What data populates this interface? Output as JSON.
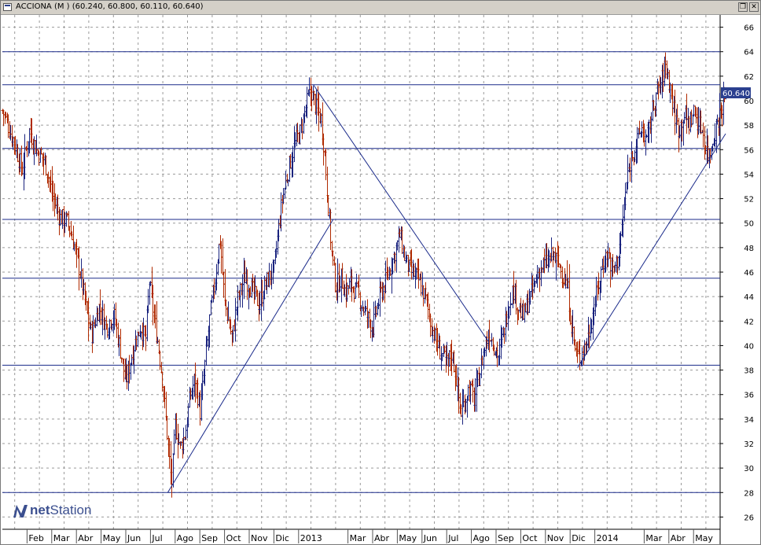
{
  "window": {
    "title": "ACCIONA (M ) (60.240, 60.800, 60.110, 60.640)"
  },
  "logo": {
    "brand_bold": "net",
    "brand_rest": "Station"
  },
  "colors": {
    "up": "#1a237e",
    "down": "#b02a00",
    "line": "#1a2a8a",
    "grid": "#9a9a9a",
    "price_tag": "#2a3f8f"
  },
  "chart_data": {
    "type": "ohlc-bar",
    "title": "ACCIONA (M )",
    "last": {
      "open": 60.24,
      "high": 60.8,
      "low": 60.11,
      "close": 60.64,
      "label": "60.640"
    },
    "ylim": [
      25,
      67
    ],
    "y_ticks": [
      26,
      28,
      30,
      32,
      34,
      36,
      38,
      40,
      42,
      44,
      46,
      48,
      50,
      52,
      54,
      56,
      58,
      60,
      62,
      64,
      66
    ],
    "x_labels": [
      "Feb",
      "Mar",
      "Abr",
      "May",
      "Jun",
      "Jul",
      "Ago",
      "Sep",
      "Oct",
      "Nov",
      "Dic",
      "2013",
      "Mar",
      "Abr",
      "May",
      "Jun",
      "Jul",
      "Ago",
      "Sep",
      "Oct",
      "Nov",
      "Dic",
      "2014",
      "Mar",
      "Abr",
      "May"
    ],
    "x_month_index": [
      1,
      2,
      3,
      4,
      5,
      6,
      7,
      8,
      9,
      10,
      11,
      12,
      14,
      15,
      16,
      17,
      18,
      19,
      20,
      21,
      22,
      23,
      24,
      26,
      27,
      28
    ],
    "x_range_months": [
      0,
      29.3
    ],
    "horizontal_levels": [
      28,
      38.4,
      45.5,
      50.3,
      56.1,
      61.3,
      64
    ],
    "trendlines": [
      {
        "from": [
          6.7,
          28
        ],
        "to": [
          13.4,
          50.3
        ]
      },
      {
        "from": [
          12.6,
          61.3
        ],
        "to": [
          19.7,
          40.3
        ]
      },
      {
        "from": [
          23.3,
          38.2
        ],
        "to": [
          29.3,
          57.3
        ]
      }
    ],
    "price_path": [
      [
        0,
        59.2
      ],
      [
        0.5,
        56.5
      ],
      [
        0.8,
        54.3
      ],
      [
        1.1,
        57.6
      ],
      [
        1.4,
        55.8
      ],
      [
        1.7,
        55.2
      ],
      [
        2.0,
        52.5
      ],
      [
        2.3,
        50.5
      ],
      [
        2.6,
        50.2
      ],
      [
        2.9,
        48.2
      ],
      [
        3.2,
        45.4
      ],
      [
        3.4,
        42.8
      ],
      [
        3.6,
        40.8
      ],
      [
        3.9,
        43.2
      ],
      [
        4.2,
        41.5
      ],
      [
        4.5,
        42.6
      ],
      [
        4.8,
        39.2
      ],
      [
        5.0,
        36.9
      ],
      [
        5.3,
        39.8
      ],
      [
        5.6,
        41.6
      ],
      [
        5.8,
        40.3
      ],
      [
        5.95,
        45.2
      ],
      [
        6.1,
        42.9
      ],
      [
        6.3,
        40.2
      ],
      [
        6.5,
        36.9
      ],
      [
        6.7,
        32.0
      ],
      [
        6.85,
        28.6
      ],
      [
        7.0,
        33.5
      ],
      [
        7.2,
        31.6
      ],
      [
        7.4,
        32.8
      ],
      [
        7.6,
        35.9
      ],
      [
        7.8,
        37.4
      ],
      [
        8.0,
        34.6
      ],
      [
        8.2,
        38.6
      ],
      [
        8.4,
        42.5
      ],
      [
        8.6,
        45.1
      ],
      [
        8.8,
        48.8
      ],
      [
        9.0,
        43.4
      ],
      [
        9.3,
        40.6
      ],
      [
        9.5,
        43.6
      ],
      [
        9.8,
        45.6
      ],
      [
        10.1,
        44.6
      ],
      [
        10.4,
        43.4
      ],
      [
        10.7,
        45.2
      ],
      [
        11.0,
        46.2
      ],
      [
        11.3,
        51.5
      ],
      [
        11.5,
        53.6
      ],
      [
        11.7,
        55.4
      ],
      [
        11.9,
        56.8
      ],
      [
        12.1,
        57.6
      ],
      [
        12.3,
        59.6
      ],
      [
        12.5,
        60.9
      ],
      [
        12.7,
        59.4
      ],
      [
        12.9,
        58.6
      ],
      [
        13.05,
        55.6
      ],
      [
        13.2,
        51.1
      ],
      [
        13.35,
        47.1
      ],
      [
        13.5,
        44.8
      ],
      [
        13.7,
        45.6
      ],
      [
        13.9,
        44.3
      ],
      [
        14.1,
        45.1
      ],
      [
        14.4,
        44.1
      ],
      [
        14.7,
        42.6
      ],
      [
        15.0,
        41.5
      ],
      [
        15.3,
        44.1
      ],
      [
        15.6,
        45.6
      ],
      [
        15.9,
        47.6
      ],
      [
        16.1,
        49.0
      ],
      [
        16.3,
        47.1
      ],
      [
        16.5,
        46.1
      ],
      [
        16.8,
        45.6
      ],
      [
        17.1,
        44.1
      ],
      [
        17.4,
        41.4
      ],
      [
        17.7,
        39.6
      ],
      [
        18.0,
        38.6
      ],
      [
        18.2,
        39.4
      ],
      [
        18.4,
        37.1
      ],
      [
        18.55,
        34.4
      ],
      [
        18.7,
        35.4
      ],
      [
        18.9,
        36.6
      ],
      [
        19.1,
        35.6
      ],
      [
        19.3,
        37.6
      ],
      [
        19.5,
        39.6
      ],
      [
        19.7,
        41.1
      ],
      [
        19.9,
        40.1
      ],
      [
        20.1,
        39.1
      ],
      [
        20.3,
        41.1
      ],
      [
        20.5,
        43.4
      ],
      [
        20.7,
        44.6
      ],
      [
        20.9,
        43.1
      ],
      [
        21.1,
        42.3
      ],
      [
        21.3,
        43.6
      ],
      [
        21.5,
        44.6
      ],
      [
        21.7,
        45.9
      ],
      [
        21.9,
        46.6
      ],
      [
        22.1,
        46.9
      ],
      [
        22.3,
        47.4
      ],
      [
        22.5,
        46.8
      ],
      [
        22.7,
        45.7
      ],
      [
        22.9,
        44.6
      ],
      [
        23.05,
        41.6
      ],
      [
        23.2,
        39.6
      ],
      [
        23.35,
        38.9
      ],
      [
        23.5,
        39.6
      ],
      [
        23.7,
        40.6
      ],
      [
        23.9,
        42.6
      ],
      [
        24.1,
        44.6
      ],
      [
        24.3,
        46.6
      ],
      [
        24.5,
        47.6
      ],
      [
        24.7,
        46.1
      ],
      [
        24.9,
        46.9
      ],
      [
        25.1,
        49.6
      ],
      [
        25.3,
        53.6
      ],
      [
        25.5,
        55.6
      ],
      [
        25.7,
        56.6
      ],
      [
        25.9,
        57.8
      ],
      [
        26.1,
        56.6
      ],
      [
        26.3,
        58.9
      ],
      [
        26.5,
        60.6
      ],
      [
        26.7,
        61.6
      ],
      [
        26.85,
        63.0
      ],
      [
        27.0,
        61.6
      ],
      [
        27.2,
        59.1
      ],
      [
        27.4,
        57.6
      ],
      [
        27.6,
        58.9
      ],
      [
        27.8,
        58.1
      ],
      [
        28.0,
        59.1
      ],
      [
        28.2,
        58.1
      ],
      [
        28.35,
        57.6
      ],
      [
        28.5,
        56.0
      ],
      [
        28.65,
        55.6
      ],
      [
        28.8,
        57.1
      ],
      [
        29.0,
        58.6
      ],
      [
        29.2,
        60.1
      ],
      [
        29.3,
        60.64
      ]
    ]
  }
}
